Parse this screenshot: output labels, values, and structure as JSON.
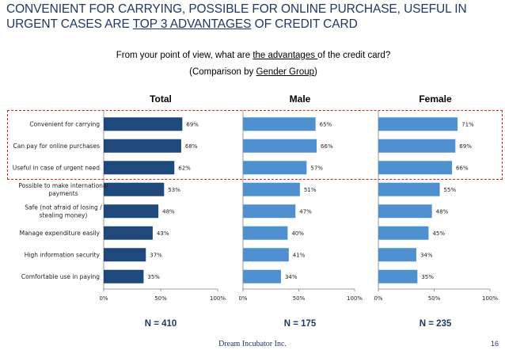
{
  "slide": {
    "title_part1": "CONVENIENT FOR CARRYING, POSSIBLE FOR ONLINE PURCHASE, USEFUL IN URGENT CASES ARE ",
    "title_part2": "TOP 3 ADVANTAGES",
    "title_part3": " OF CREDIT CARD",
    "question_part1": "From your point of view, what are ",
    "question_part2": "the advantages ",
    "question_part3": "of the credit card? (Comparison by ",
    "question_part4": "Gender Group",
    "question_part5": ")",
    "footer": "Dream Incubator Inc.",
    "page_number": "16"
  },
  "colors": {
    "title": "#1f3864",
    "total_bar": "#1f497d",
    "gender_bar": "#4f90d0",
    "highlight_box": "#e31b1b"
  },
  "chart_data": [
    {
      "type": "bar",
      "orientation": "horizontal",
      "title": "Total",
      "n_label": "N = 410",
      "categories": [
        "Convenient for carrying",
        "Can pay for online purchases",
        "Useful in case of urgent need",
        "Possible to make international payments",
        "Safe (not afraid of losing / stealing money)",
        "Manage expenditure easily",
        "High information security",
        "Comfortable use in paying"
      ],
      "values": [
        69,
        68,
        62,
        53,
        48,
        43,
        37,
        35
      ],
      "value_labels": [
        "69%",
        "68%",
        "62%",
        "53%",
        "48%",
        "43%",
        "37%",
        "35%"
      ],
      "xlim": [
        0,
        100
      ],
      "xticks": [
        "0%",
        "50%",
        "100%"
      ],
      "color": "#1f497d"
    },
    {
      "type": "bar",
      "orientation": "horizontal",
      "title": "Male",
      "n_label": "N = 175",
      "categories": [
        "Convenient for carrying",
        "Can pay for online purchases",
        "Useful in case of urgent need",
        "Possible to make international payments",
        "Safe (not afraid of losing / stealing money)",
        "Manage expenditure easily",
        "High information security",
        "Comfortable use in paying"
      ],
      "values": [
        65,
        66,
        57,
        51,
        47,
        40,
        41,
        34
      ],
      "value_labels": [
        "65%",
        "66%",
        "57%",
        "51%",
        "47%",
        "40%",
        "41%",
        "34%"
      ],
      "xlim": [
        0,
        100
      ],
      "xticks": [
        "0%",
        "50%",
        "100%"
      ],
      "color": "#4f90d0"
    },
    {
      "type": "bar",
      "orientation": "horizontal",
      "title": "Female",
      "n_label": "N = 235",
      "categories": [
        "Convenient for carrying",
        "Can pay for online purchases",
        "Useful in case of urgent need",
        "Possible to make international payments",
        "Safe (not afraid of losing / stealing money)",
        "Manage expenditure easily",
        "High information security",
        "Comfortable use in paying"
      ],
      "values": [
        71,
        69,
        66,
        55,
        48,
        45,
        34,
        35
      ],
      "value_labels": [
        "71%",
        "69%",
        "66%",
        "55%",
        "48%",
        "45%",
        "34%",
        "35%"
      ],
      "xlim": [
        0,
        100
      ],
      "xticks": [
        "0%",
        "50%",
        "100%"
      ],
      "color": "#4f90d0"
    }
  ]
}
